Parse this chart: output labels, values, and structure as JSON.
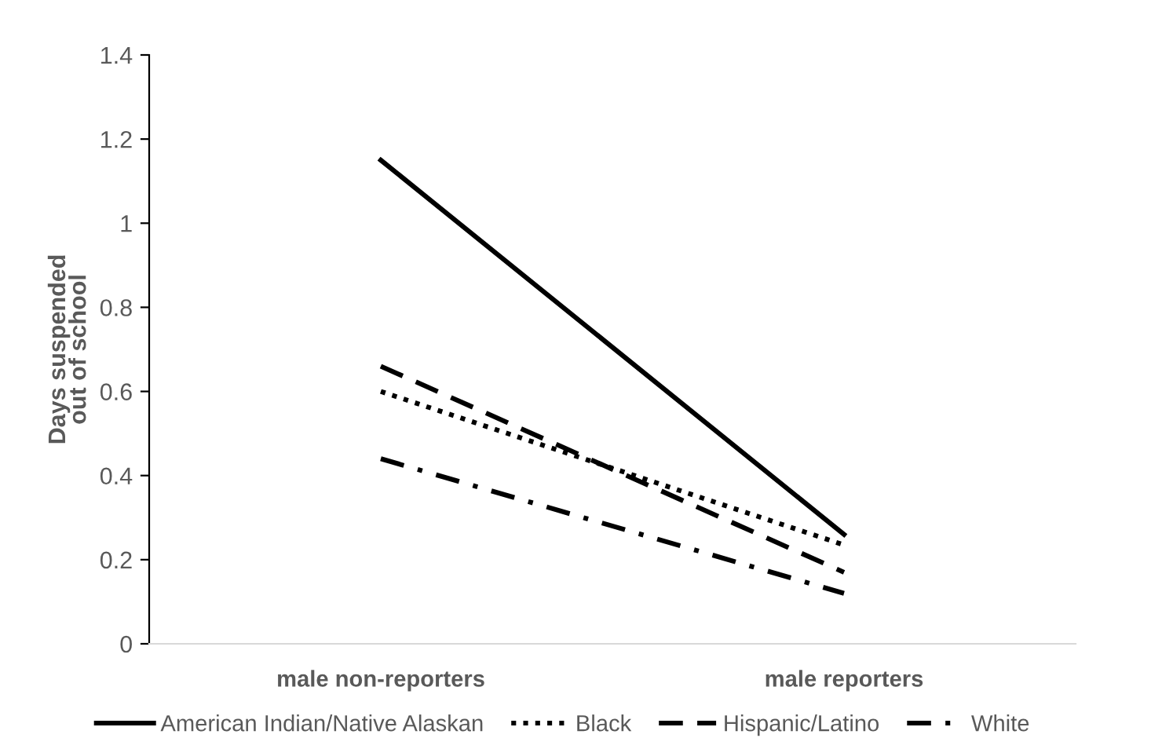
{
  "chart_data": {
    "type": "line",
    "ylabel": "Days suspended\nout of school",
    "categories": [
      "male non-reporters",
      "male reporters"
    ],
    "ylim": [
      0,
      1.4
    ],
    "yticks": [
      0,
      0.2,
      0.4,
      0.6,
      0.8,
      1,
      1.2,
      1.4
    ],
    "grid": false,
    "legend": "bottom",
    "marker": "none",
    "series": [
      {
        "name": "American Indian/Native Alaskan",
        "color": "#000000",
        "line_style": "solid",
        "values": [
          1.15,
          0.26
        ]
      },
      {
        "name": "Black",
        "color": "#000000",
        "line_style": "dotted",
        "values": [
          0.6,
          0.235
        ]
      },
      {
        "name": "Hispanic/Latino",
        "color": "#000000",
        "line_style": "dashed",
        "values": [
          0.66,
          0.17
        ]
      },
      {
        "name": "White",
        "color": "#000000",
        "line_style": "dashdot",
        "values": [
          0.44,
          0.12
        ]
      }
    ]
  }
}
